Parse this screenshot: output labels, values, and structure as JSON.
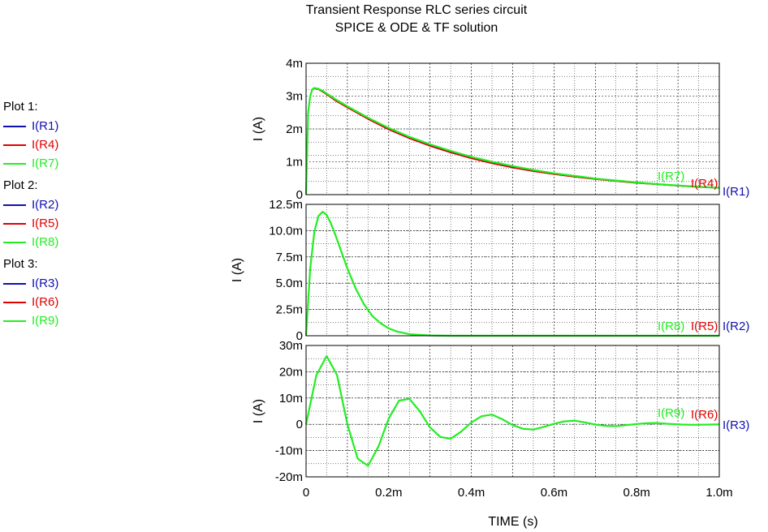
{
  "title": {
    "line1": "Transient Response RLC series circuit",
    "line2": "SPICE & ODE & TF solution"
  },
  "legend": {
    "groups": [
      {
        "title": "Plot 1:",
        "items": [
          {
            "label": "I(R1)",
            "color": "#1010b0"
          },
          {
            "label": "I(R4)",
            "color": "#e00000"
          },
          {
            "label": "I(R7)",
            "color": "#22ee22"
          }
        ]
      },
      {
        "title": "Plot 2:",
        "items": [
          {
            "label": "I(R2)",
            "color": "#1010b0"
          },
          {
            "label": "I(R5)",
            "color": "#e00000"
          },
          {
            "label": "I(R8)",
            "color": "#22ee22"
          }
        ]
      },
      {
        "title": "Plot 3:",
        "items": [
          {
            "label": "I(R3)",
            "color": "#1010b0"
          },
          {
            "label": "I(R6)",
            "color": "#e00000"
          },
          {
            "label": "I(R9)",
            "color": "#22ee22"
          }
        ]
      }
    ]
  },
  "chart_data": [
    {
      "type": "line",
      "ylabel": "I  (A)",
      "ylim": [
        0,
        0.004
      ],
      "yticks": [
        0,
        0.001,
        0.002,
        0.003,
        0.004
      ],
      "ytick_labels": [
        "0",
        "1m",
        "2m",
        "3m",
        "4m"
      ],
      "xlim": [
        0,
        0.001
      ],
      "grid": true,
      "end_labels": [
        "I(R7)",
        "I(R4)",
        "I(R1)"
      ],
      "x": [
        0,
        5e-06,
        1e-05,
        1.5e-05,
        2e-05,
        3e-05,
        4e-05,
        5e-05,
        7e-05,
        0.0001,
        0.00015,
        0.0002,
        0.00025,
        0.0003,
        0.00035,
        0.0004,
        0.00045,
        0.0005,
        0.00055,
        0.0006,
        0.00065,
        0.0007,
        0.00075,
        0.0008,
        0.00085,
        0.0009,
        0.00095,
        0.001
      ],
      "series": [
        {
          "name": "I(R1)",
          "color": "#1010b0",
          "values": [
            0,
            0.0025,
            0.003,
            0.0032,
            0.00324,
            0.00321,
            0.00314,
            0.00306,
            0.00289,
            0.00267,
            0.00232,
            0.00201,
            0.00174,
            0.00151,
            0.00131,
            0.00113,
            0.00098,
            0.00085,
            0.00074,
            0.00064,
            0.00056,
            0.00048,
            0.00042,
            0.00036,
            0.00031,
            0.00027,
            0.00024,
            0.0002
          ]
        },
        {
          "name": "I(R4)",
          "color": "#e00000",
          "values": [
            0,
            0.0025,
            0.003,
            0.0032,
            0.00323,
            0.0032,
            0.00313,
            0.00305,
            0.00287,
            0.00265,
            0.0023,
            0.00198,
            0.00171,
            0.00148,
            0.00128,
            0.0011,
            0.00095,
            0.00082,
            0.00071,
            0.00062,
            0.00054,
            0.00047,
            0.00041,
            0.00035,
            0.00031,
            0.00027,
            0.00023,
            0.0002
          ]
        },
        {
          "name": "I(R7)",
          "color": "#22ee22",
          "values": [
            0,
            0.0025,
            0.003,
            0.0032,
            0.00325,
            0.00322,
            0.00316,
            0.00308,
            0.00291,
            0.00269,
            0.00234,
            0.00203,
            0.00176,
            0.00153,
            0.00133,
            0.00115,
            0.001,
            0.00087,
            0.00075,
            0.00065,
            0.00057,
            0.00049,
            0.00043,
            0.00037,
            0.00032,
            0.00028,
            0.00024,
            0.00021
          ]
        }
      ]
    },
    {
      "type": "line",
      "ylabel": "I  (A)",
      "ylim": [
        0,
        0.0125
      ],
      "yticks": [
        0,
        0.0025,
        0.005,
        0.0075,
        0.01,
        0.0125
      ],
      "ytick_labels": [
        "0",
        "2.5m",
        "5.0m",
        "7.5m",
        "10.0m",
        "12.5m"
      ],
      "xlim": [
        0,
        0.001
      ],
      "grid": true,
      "end_labels": [
        "I(R8)",
        "I(R5)",
        "I(R2)"
      ],
      "x": [
        0,
        1e-05,
        2e-05,
        3e-05,
        4e-05,
        5e-05,
        6e-05,
        7e-05,
        8e-05,
        0.0001,
        0.00012,
        0.00014,
        0.00016,
        0.00018,
        0.0002,
        0.00022,
        0.00025,
        0.0003,
        0.00035,
        0.0004,
        0.0005,
        0.0006,
        0.0007,
        0.0008,
        0.0009,
        0.001
      ],
      "series": [
        {
          "name": "I(R2)",
          "color": "#1010b0",
          "values": [
            0,
            0.0064,
            0.0099,
            0.0114,
            0.0118,
            0.0115,
            0.0107,
            0.0097,
            0.0086,
            0.0064,
            0.0045,
            0.003,
            0.0019,
            0.0012,
            0.0007,
            0.0004,
            0.00015,
            3e-05,
            0,
            0,
            0,
            0,
            0,
            0,
            0,
            0
          ]
        },
        {
          "name": "I(R5)",
          "color": "#e00000",
          "values": [
            0,
            0.0064,
            0.0099,
            0.0114,
            0.0118,
            0.0115,
            0.0107,
            0.0097,
            0.0086,
            0.0064,
            0.0045,
            0.003,
            0.0019,
            0.0012,
            0.0007,
            0.0004,
            0.00015,
            3e-05,
            0,
            0,
            0,
            0,
            0,
            0,
            0,
            0
          ]
        },
        {
          "name": "I(R8)",
          "color": "#22ee22",
          "values": [
            0,
            0.0064,
            0.0099,
            0.0114,
            0.0118,
            0.0115,
            0.0107,
            0.0097,
            0.0086,
            0.0064,
            0.0045,
            0.003,
            0.0019,
            0.0012,
            0.0007,
            0.0004,
            0.00015,
            3e-05,
            0,
            0,
            0,
            0,
            0,
            0,
            0,
            0
          ]
        }
      ]
    },
    {
      "type": "line",
      "ylabel": "I  (A)",
      "ylim": [
        -0.02,
        0.03
      ],
      "yticks": [
        -0.02,
        -0.01,
        0,
        0.01,
        0.02,
        0.03
      ],
      "ytick_labels": [
        "-20m",
        "-10m",
        "0",
        "10m",
        "20m",
        "30m"
      ],
      "xlim": [
        0,
        0.001
      ],
      "xticks": [
        0,
        0.0002,
        0.0004,
        0.0006,
        0.0008,
        0.001
      ],
      "xtick_labels": [
        "0",
        "0.2m",
        "0.4m",
        "0.6m",
        "0.8m",
        "1.0m"
      ],
      "xlabel": "TIME  (s)",
      "grid": true,
      "end_labels": [
        "I(R9)",
        "I(R6)",
        "I(R3)"
      ],
      "x": [
        0,
        2.5e-05,
        5e-05,
        7.5e-05,
        0.0001,
        0.000125,
        0.00015,
        0.000175,
        0.0002,
        0.000225,
        0.00025,
        0.000275,
        0.0003,
        0.000325,
        0.00035,
        0.000375,
        0.0004,
        0.000425,
        0.00045,
        0.000475,
        0.0005,
        0.000525,
        0.00055,
        0.000575,
        0.0006,
        0.000625,
        0.00065,
        0.000675,
        0.0007,
        0.000725,
        0.00075,
        0.000775,
        0.0008,
        0.000825,
        0.00085,
        0.000875,
        0.0009,
        0.000925,
        0.00095,
        0.000975,
        0.001
      ],
      "series": [
        {
          "name": "I(R3)",
          "color": "#1010b0",
          "values": [
            0,
            0.0187,
            0.026,
            0.0187,
            0,
            -0.0131,
            -0.0158,
            -0.0085,
            0.0022,
            0.009,
            0.0097,
            0.005,
            -0.0012,
            -0.0048,
            -0.0055,
            -0.0028,
            0.0007,
            0.0031,
            0.0037,
            0.0019,
            -0.0003,
            -0.0017,
            -0.002,
            -0.001,
            0.0002,
            0.0011,
            0.0014,
            0.0007,
            -0.0001,
            -0.0006,
            -0.0007,
            -0.0003,
            0.0001,
            0.0004,
            0.0005,
            0.0002,
            0,
            -0.0002,
            -0.0002,
            -0.0001,
            0
          ]
        },
        {
          "name": "I(R6)",
          "color": "#e00000",
          "values": [
            0,
            0.0187,
            0.026,
            0.0187,
            0,
            -0.0131,
            -0.0158,
            -0.0085,
            0.0022,
            0.009,
            0.0097,
            0.005,
            -0.0012,
            -0.0048,
            -0.0055,
            -0.0028,
            0.0007,
            0.0031,
            0.0037,
            0.0019,
            -0.0003,
            -0.0017,
            -0.002,
            -0.001,
            0.0002,
            0.0011,
            0.0014,
            0.0007,
            -0.0001,
            -0.0006,
            -0.0007,
            -0.0003,
            0.0001,
            0.0004,
            0.0005,
            0.0002,
            0,
            -0.0002,
            -0.0002,
            -0.0001,
            0
          ]
        },
        {
          "name": "I(R9)",
          "color": "#22ee22",
          "values": [
            0,
            0.0187,
            0.026,
            0.0187,
            0,
            -0.0131,
            -0.0158,
            -0.0085,
            0.0022,
            0.009,
            0.0097,
            0.005,
            -0.0012,
            -0.0048,
            -0.0055,
            -0.0028,
            0.0007,
            0.0031,
            0.0037,
            0.0019,
            -0.0003,
            -0.0017,
            -0.002,
            -0.001,
            0.0002,
            0.0011,
            0.0014,
            0.0007,
            -0.0001,
            -0.0006,
            -0.0007,
            -0.0003,
            0.0001,
            0.0004,
            0.0005,
            0.0002,
            0,
            -0.0002,
            -0.0002,
            -0.0001,
            0
          ]
        }
      ]
    }
  ]
}
